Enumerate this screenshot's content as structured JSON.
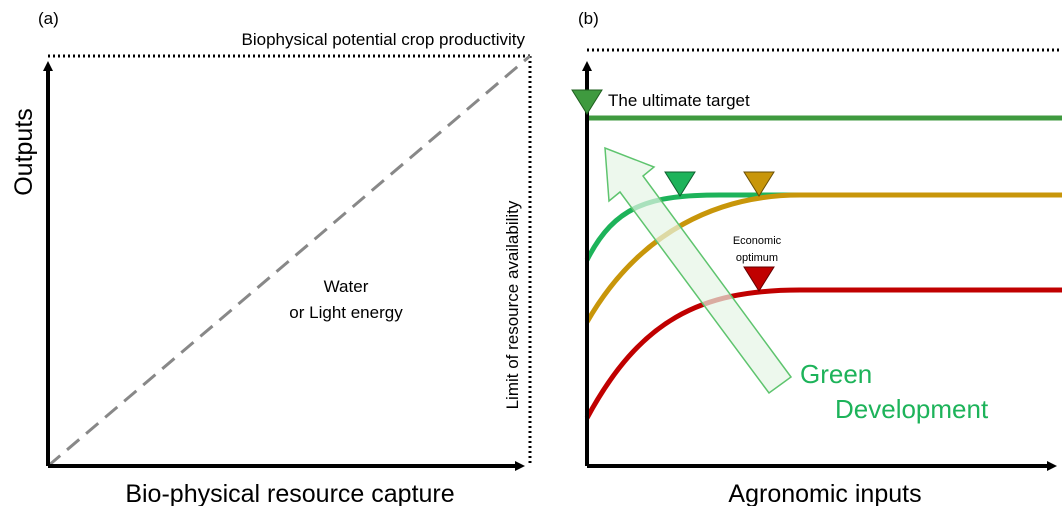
{
  "panel_a": {
    "label": "(a)",
    "top_label": "Biophysical potential crop productivity",
    "y_axis": "Outputs",
    "x_axis": "Bio-physical resource capture",
    "right_label": "Limit of resource availability",
    "diagonal_label": [
      "Water",
      "or Light energy"
    ]
  },
  "panel_b": {
    "label": "(b)",
    "target_label": "The ultimate target",
    "optimum_label": [
      "Economic",
      "optimum"
    ],
    "arrow_label": [
      "Green",
      "Development"
    ],
    "x_axis": "Agronomic inputs"
  }
}
